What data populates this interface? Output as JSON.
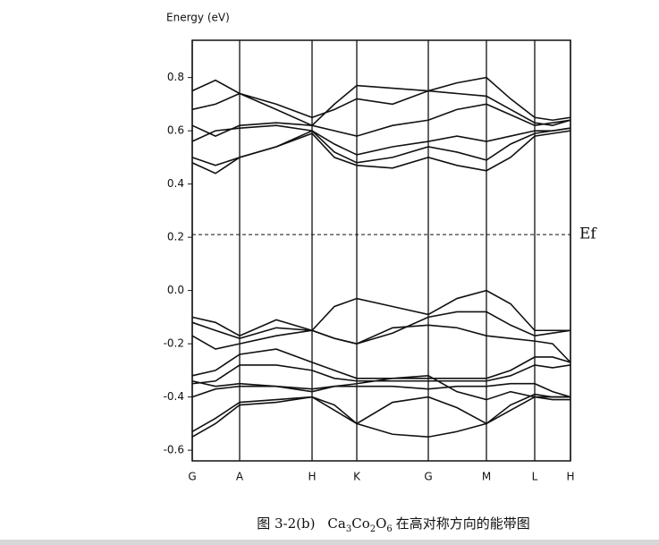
{
  "chart_data": {
    "type": "line",
    "ylabel": "Energy (eV)",
    "caption": {
      "prefix": "图 3-2(b)",
      "formula": [
        "Ca",
        "3",
        "Co",
        "2",
        "O",
        "6"
      ],
      "suffix": "在高对称方向的能带图"
    },
    "annotation": {
      "text": "Ef",
      "value": 0.21
    },
    "color": "#111111",
    "x": [
      0,
      26,
      53,
      94,
      134,
      159,
      184,
      224,
      264,
      296,
      329,
      356,
      383,
      403,
      423
    ],
    "xlim": [
      0,
      423
    ],
    "xticks": [
      {
        "value": 0,
        "label": "G"
      },
      {
        "value": 53,
        "label": "A"
      },
      {
        "value": 134,
        "label": "H"
      },
      {
        "value": 184,
        "label": "K"
      },
      {
        "value": 264,
        "label": "G"
      },
      {
        "value": 329,
        "label": "M"
      },
      {
        "value": 383,
        "label": "L"
      },
      {
        "value": 423,
        "label": "H"
      }
    ],
    "ylim": [
      -0.64,
      0.94
    ],
    "yticks": [
      -0.6,
      -0.4,
      -0.2,
      {
        "value": 0,
        "label": "0.0"
      },
      0.2,
      0.4,
      0.6,
      0.8
    ],
    "series": [
      {
        "values": [
          0.75,
          0.79,
          0.74,
          0.68,
          0.62,
          0.7,
          0.77,
          0.76,
          0.75,
          0.78,
          0.8,
          0.72,
          0.65,
          0.64,
          0.65
        ]
      },
      {
        "values": [
          0.68,
          0.7,
          0.74,
          0.7,
          0.65,
          0.68,
          0.72,
          0.7,
          0.75,
          0.74,
          0.73,
          0.68,
          0.63,
          0.62,
          0.64
        ]
      },
      {
        "values": [
          0.62,
          0.58,
          0.62,
          0.63,
          0.62,
          0.6,
          0.58,
          0.62,
          0.64,
          0.68,
          0.7,
          0.66,
          0.62,
          0.63,
          0.64
        ]
      },
      {
        "values": [
          0.56,
          0.6,
          0.61,
          0.62,
          0.6,
          0.55,
          0.51,
          0.54,
          0.56,
          0.58,
          0.56,
          0.58,
          0.6,
          0.6,
          0.61
        ]
      },
      {
        "values": [
          0.5,
          0.47,
          0.5,
          0.54,
          0.6,
          0.52,
          0.48,
          0.5,
          0.54,
          0.52,
          0.49,
          0.55,
          0.59,
          0.6,
          0.61
        ]
      },
      {
        "values": [
          0.48,
          0.44,
          0.5,
          0.54,
          0.59,
          0.5,
          0.47,
          0.46,
          0.5,
          0.47,
          0.45,
          0.5,
          0.58,
          0.59,
          0.6
        ]
      },
      {
        "values": [
          -0.1,
          -0.12,
          -0.17,
          -0.11,
          -0.15,
          -0.06,
          -0.03,
          -0.06,
          -0.09,
          -0.03,
          0.0,
          -0.05,
          -0.15,
          -0.15,
          -0.15
        ]
      },
      {
        "values": [
          -0.12,
          -0.15,
          -0.18,
          -0.14,
          -0.15,
          -0.18,
          -0.2,
          -0.16,
          -0.1,
          -0.08,
          -0.08,
          -0.13,
          -0.17,
          -0.16,
          -0.15
        ]
      },
      {
        "values": [
          -0.17,
          -0.22,
          -0.2,
          -0.17,
          -0.15,
          -0.18,
          -0.2,
          -0.14,
          -0.13,
          -0.14,
          -0.17,
          -0.18,
          -0.19,
          -0.2,
          -0.27
        ]
      },
      {
        "values": [
          -0.32,
          -0.3,
          -0.24,
          -0.22,
          -0.27,
          -0.3,
          -0.33,
          -0.33,
          -0.33,
          -0.33,
          -0.33,
          -0.3,
          -0.25,
          -0.25,
          -0.27
        ]
      },
      {
        "values": [
          -0.35,
          -0.34,
          -0.28,
          -0.28,
          -0.3,
          -0.33,
          -0.34,
          -0.34,
          -0.34,
          -0.34,
          -0.34,
          -0.32,
          -0.28,
          -0.29,
          -0.28
        ]
      },
      {
        "values": [
          -0.34,
          -0.36,
          -0.35,
          -0.36,
          -0.37,
          -0.36,
          -0.36,
          -0.36,
          -0.37,
          -0.36,
          -0.36,
          -0.35,
          -0.35,
          -0.38,
          -0.4
        ]
      },
      {
        "values": [
          -0.4,
          -0.37,
          -0.36,
          -0.36,
          -0.38,
          -0.36,
          -0.35,
          -0.33,
          -0.32,
          -0.38,
          -0.41,
          -0.38,
          -0.4,
          -0.4,
          -0.4
        ]
      },
      {
        "values": [
          -0.55,
          -0.5,
          -0.43,
          -0.42,
          -0.4,
          -0.45,
          -0.5,
          -0.54,
          -0.55,
          -0.53,
          -0.5,
          -0.45,
          -0.4,
          -0.41,
          -0.41
        ]
      },
      {
        "values": [
          -0.53,
          -0.48,
          -0.42,
          -0.41,
          -0.4,
          -0.43,
          -0.5,
          -0.42,
          -0.4,
          -0.44,
          -0.5,
          -0.43,
          -0.39,
          -0.4,
          -0.4
        ]
      }
    ]
  }
}
